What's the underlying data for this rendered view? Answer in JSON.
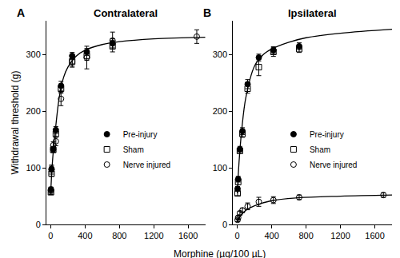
{
  "chart_data": {
    "type": "scatter",
    "xlabel": "Morphine (µg/100 µL)",
    "ylabel": "Withdrawal threshold (g)",
    "legend": "center",
    "panels": [
      {
        "label": "A",
        "title": "Contralateral",
        "xlim": [
          -50,
          1800
        ],
        "xticks": [
          0,
          400,
          800,
          1200,
          1600
        ],
        "ylim": [
          0,
          360
        ],
        "yticks": [
          0,
          100,
          200,
          300
        ],
        "series": [
          {
            "name": "Pre-injury",
            "color": "#000000",
            "marker": "circle",
            "x": [
              3,
              10,
              30,
              60,
              120,
              250,
              420,
              720
            ],
            "values": [
              62,
              98,
              133,
              167,
              245,
              298,
              305,
              320
            ],
            "errors": [
              4,
              5,
              5,
              6,
              8,
              6,
              6,
              8
            ]
          },
          {
            "name": "Sham",
            "color": "#000000",
            "marker": "square-open",
            "x": [
              3,
              10,
              30,
              60,
              120,
              250,
              420,
              720
            ],
            "values": [
              57,
              90,
              132,
              160,
              240,
              288,
              298,
              315
            ],
            "errors": [
              4,
              5,
              5,
              6,
              8,
              8,
              8,
              10
            ]
          },
          {
            "name": "Nerve injured",
            "color": "#000000",
            "marker": "circle-open",
            "x": [
              3,
              10,
              30,
              60,
              120,
              250,
              420,
              720,
              1700
            ],
            "values": [
              60,
              97,
              140,
              147,
              222,
              288,
              295,
              325,
              332
            ],
            "errors": [
              5,
              8,
              6,
              8,
              12,
              10,
              20,
              15,
              12
            ]
          }
        ],
        "fit": [
          {
            "x": [
              0,
              20,
              50,
              100,
              150,
              200,
              300,
              400,
              600,
              800,
              1200,
              1800
            ],
            "values": [
              55,
              110,
              160,
              225,
              260,
              278,
              298,
              308,
              318,
              323,
              328,
              331
            ]
          }
        ]
      },
      {
        "label": "B",
        "title": "Ipsilateral",
        "xlim": [
          -50,
          1800
        ],
        "xticks": [
          0,
          400,
          800,
          1200,
          1600
        ],
        "ylim": [
          0,
          360
        ],
        "yticks": [
          0,
          100,
          200,
          300
        ],
        "series": [
          {
            "name": "Pre-injury",
            "color": "#000000",
            "marker": "circle",
            "x": [
              3,
              10,
              30,
              60,
              120,
              250,
              420,
              720
            ],
            "values": [
              63,
              80,
              133,
              165,
              248,
              295,
              308,
              315
            ],
            "errors": [
              4,
              5,
              5,
              6,
              8,
              6,
              6,
              6
            ]
          },
          {
            "name": "Sham",
            "color": "#000000",
            "marker": "square-open",
            "x": [
              3,
              10,
              30,
              60,
              120,
              250,
              420,
              720
            ],
            "values": [
              55,
              75,
              130,
              160,
              240,
              278,
              305,
              310
            ],
            "errors": [
              4,
              5,
              5,
              6,
              8,
              15,
              8,
              6
            ]
          },
          {
            "name": "Nerve injured",
            "color": "#000000",
            "marker": "circle-open",
            "x": [
              3,
              10,
              30,
              60,
              120,
              250,
              420,
              720,
              1700
            ],
            "values": [
              8,
              12,
              20,
              25,
              32,
              40,
              43,
              48,
              52
            ],
            "errors": [
              3,
              3,
              3,
              4,
              6,
              8,
              6,
              4,
              4
            ]
          }
        ],
        "fit": [
          {
            "x": [
              0,
              20,
              50,
              100,
              200,
              300,
              400,
              600,
              800,
              1200,
              1800
            ],
            "values": [
              55,
              110,
              165,
              225,
              280,
              300,
              310,
              322,
              330,
              338,
              345
            ]
          },
          {
            "x": [
              0,
              50,
              100,
              200,
              400,
              700,
              1200,
              1800
            ],
            "values": [
              5,
              18,
              25,
              33,
              42,
              47,
              50,
              52
            ]
          }
        ]
      }
    ]
  }
}
